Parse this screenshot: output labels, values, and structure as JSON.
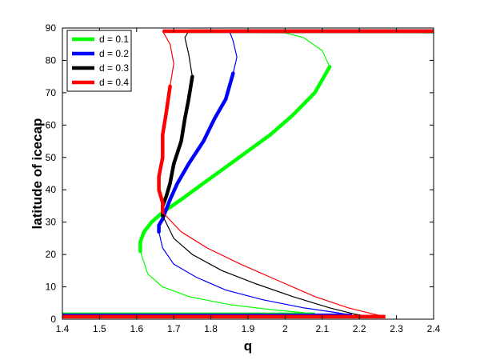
{
  "chart_data": {
    "type": "line",
    "title": "",
    "xlabel": "q",
    "ylabel": "latitude of icecap",
    "xlim": [
      1.4,
      2.4
    ],
    "ylim": [
      0,
      90
    ],
    "x_ticks": [
      "1.4",
      "1.5",
      "1.6",
      "1.7",
      "1.8",
      "1.9",
      "2",
      "2.1",
      "2.2",
      "2.3",
      "2.4"
    ],
    "y_ticks": [
      "0",
      "10",
      "20",
      "30",
      "40",
      "50",
      "60",
      "70",
      "80",
      "90"
    ],
    "grid": false,
    "legend_position": "top-left",
    "series": [
      {
        "name": "d = 0.1",
        "color": "#00ff00",
        "stable_upper": [
          [
            2.12,
            78
          ],
          [
            2.08,
            70
          ],
          [
            2.02,
            63
          ],
          [
            1.96,
            57
          ],
          [
            1.9,
            52
          ],
          [
            1.84,
            47
          ],
          [
            1.78,
            42
          ],
          [
            1.72,
            37
          ],
          [
            1.67,
            33
          ],
          [
            1.64,
            30
          ],
          [
            1.62,
            27
          ],
          [
            1.61,
            24
          ],
          [
            1.61,
            21
          ]
        ],
        "unstable_middle": [
          [
            1.61,
            21
          ],
          [
            1.63,
            14
          ],
          [
            1.67,
            10
          ],
          [
            1.74,
            7
          ],
          [
            1.85,
            4.5
          ],
          [
            1.96,
            3
          ],
          [
            2.05,
            2
          ],
          [
            2.08,
            1.5
          ]
        ],
        "unstable_upper": [
          [
            2.12,
            78
          ],
          [
            2.1,
            83
          ],
          [
            2.05,
            87
          ],
          [
            2.0,
            88.5
          ],
          [
            1.73,
            89
          ],
          [
            2.4,
            88.5
          ]
        ],
        "ice_free": [
          [
            2.08,
            1.5
          ],
          [
            1.4,
            1.5
          ]
        ],
        "ice_covered_q_start": 2.1
      },
      {
        "name": "d = 0.2",
        "color": "#0000ff",
        "stable_upper": [
          [
            1.86,
            76
          ],
          [
            1.84,
            68
          ],
          [
            1.81,
            62
          ],
          [
            1.78,
            55
          ],
          [
            1.74,
            48
          ],
          [
            1.71,
            42
          ],
          [
            1.69,
            37
          ],
          [
            1.68,
            34
          ],
          [
            1.67,
            31
          ],
          [
            1.66,
            29
          ],
          [
            1.66,
            27
          ]
        ],
        "unstable_middle": [
          [
            1.66,
            27
          ],
          [
            1.67,
            22
          ],
          [
            1.7,
            17
          ],
          [
            1.76,
            13
          ],
          [
            1.84,
            9
          ],
          [
            1.94,
            6
          ],
          [
            2.05,
            3.5
          ],
          [
            2.14,
            2
          ],
          [
            2.18,
            1.2
          ]
        ],
        "unstable_upper": [
          [
            1.86,
            76
          ],
          [
            1.87,
            81
          ],
          [
            1.86,
            86
          ],
          [
            1.85,
            89
          ]
        ],
        "ice_free": [
          [
            2.18,
            1.2
          ],
          [
            1.4,
            1.2
          ]
        ],
        "ice_covered_q_start": 1.85
      },
      {
        "name": "d = 0.3",
        "color": "#000000",
        "stable_upper": [
          [
            1.75,
            75
          ],
          [
            1.74,
            68
          ],
          [
            1.73,
            62
          ],
          [
            1.72,
            55
          ],
          [
            1.7,
            48
          ],
          [
            1.69,
            42
          ],
          [
            1.68,
            38
          ],
          [
            1.67,
            35
          ],
          [
            1.67,
            32
          ]
        ],
        "unstable_middle": [
          [
            1.67,
            32
          ],
          [
            1.7,
            25
          ],
          [
            1.75,
            20
          ],
          [
            1.83,
            15
          ],
          [
            1.92,
            11
          ],
          [
            2.02,
            7
          ],
          [
            2.12,
            3.5
          ],
          [
            2.19,
            1.5
          ],
          [
            2.23,
            0.8
          ]
        ],
        "unstable_upper": [
          [
            1.75,
            75
          ],
          [
            1.74,
            82
          ],
          [
            1.73,
            87
          ],
          [
            1.74,
            89
          ]
        ],
        "ice_free": [
          [
            2.23,
            0.8
          ],
          [
            1.4,
            0.8
          ]
        ],
        "ice_covered_q_start": 1.74
      },
      {
        "name": "d = 0.4",
        "color": "#ff0000",
        "stable_upper": [
          [
            1.69,
            72
          ],
          [
            1.68,
            64
          ],
          [
            1.67,
            57
          ],
          [
            1.67,
            50
          ],
          [
            1.66,
            44
          ],
          [
            1.66,
            40
          ],
          [
            1.67,
            36
          ],
          [
            1.67,
            33
          ]
        ],
        "unstable_middle": [
          [
            1.67,
            33
          ],
          [
            1.72,
            27
          ],
          [
            1.79,
            22
          ],
          [
            1.88,
            17
          ],
          [
            1.98,
            12
          ],
          [
            2.08,
            7
          ],
          [
            2.17,
            3.5
          ],
          [
            2.23,
            1.8
          ],
          [
            2.27,
            0.8
          ]
        ],
        "unstable_upper": [
          [
            1.69,
            72
          ],
          [
            1.7,
            79
          ],
          [
            1.69,
            85
          ],
          [
            1.67,
            89
          ]
        ],
        "ice_free": [
          [
            2.27,
            0.8
          ],
          [
            1.4,
            0.8
          ]
        ],
        "ice_covered_q_start": 1.67
      }
    ]
  }
}
